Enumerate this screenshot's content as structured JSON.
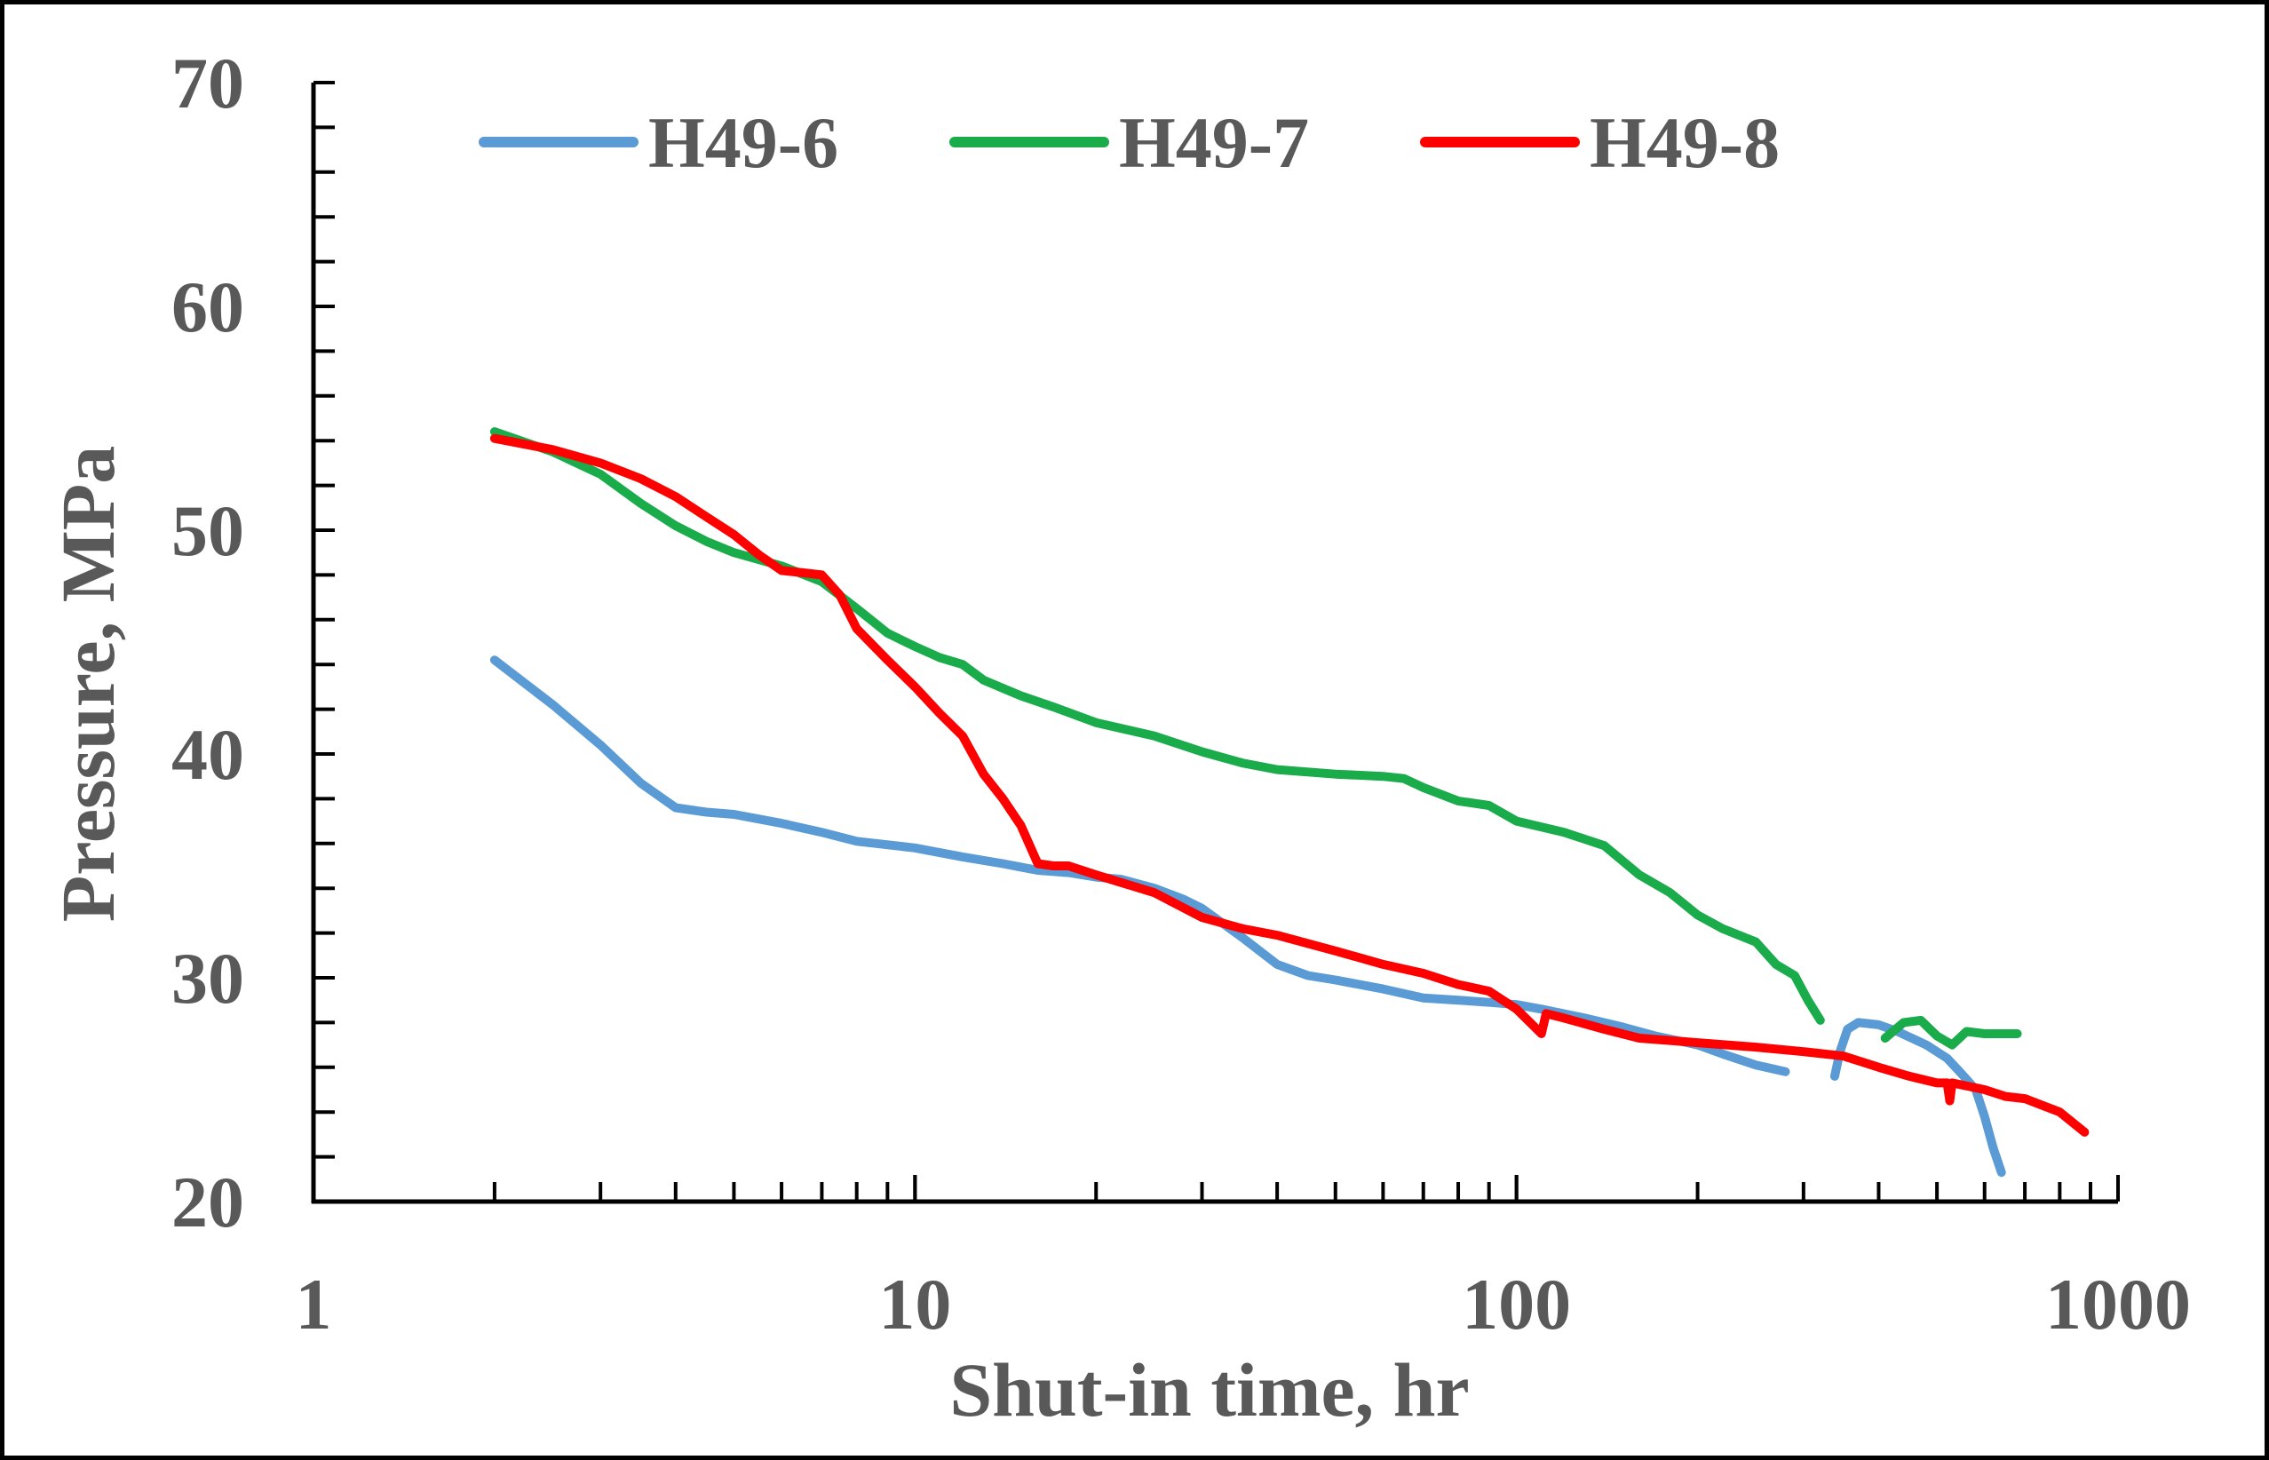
{
  "chart_data": {
    "type": "line",
    "title": "",
    "xlabel": "Shut-in time, hr",
    "ylabel": "Pressure, MPa",
    "xscale": "log",
    "xlim": [
      1,
      1000
    ],
    "ylim": [
      20,
      70
    ],
    "xticks": [
      "1",
      "10",
      "100",
      "1000"
    ],
    "yticks": [
      "20",
      "30",
      "40",
      "50",
      "60",
      "70"
    ],
    "legend_position": "top",
    "series": [
      {
        "name": "H49-6",
        "color": "#5b9bd5",
        "segments": [
          [
            [
              2,
              44.2
            ],
            [
              2.5,
              42.2
            ],
            [
              3,
              40.4
            ],
            [
              3.5,
              38.7
            ],
            [
              4,
              37.6
            ],
            [
              4.5,
              37.4
            ],
            [
              5,
              37.3
            ],
            [
              6,
              36.9
            ],
            [
              7,
              36.5
            ],
            [
              8,
              36.1
            ],
            [
              10,
              35.8
            ],
            [
              12,
              35.4
            ],
            [
              14,
              35.1
            ],
            [
              16,
              34.8
            ],
            [
              18,
              34.7
            ],
            [
              20,
              34.5
            ],
            [
              22,
              34.4
            ],
            [
              25,
              34.0
            ],
            [
              28,
              33.5
            ],
            [
              30,
              33.1
            ],
            [
              35,
              31.8
            ],
            [
              40,
              30.6
            ],
            [
              45,
              30.1
            ],
            [
              50,
              29.9
            ],
            [
              60,
              29.5
            ],
            [
              70,
              29.1
            ],
            [
              80,
              29.0
            ],
            [
              90,
              28.9
            ],
            [
              100,
              28.8
            ],
            [
              110,
              28.6
            ],
            [
              130,
              28.2
            ],
            [
              150,
              27.8
            ],
            [
              170,
              27.4
            ],
            [
              200,
              27.0
            ],
            [
              220,
              26.6
            ],
            [
              250,
              26.1
            ],
            [
              280,
              25.8
            ]
          ],
          [
            [
              338,
              25.6
            ],
            [
              345,
              26.7
            ],
            [
              355,
              27.7
            ],
            [
              370,
              28.0
            ],
            [
              400,
              27.9
            ],
            [
              430,
              27.6
            ],
            [
              480,
              27.0
            ],
            [
              520,
              26.4
            ],
            [
              550,
              25.7
            ],
            [
              580,
              25.0
            ],
            [
              600,
              23.8
            ],
            [
              620,
              22.4
            ],
            [
              640,
              21.3
            ]
          ]
        ]
      },
      {
        "name": "H49-7",
        "color": "#1aab4b",
        "segments": [
          [
            [
              2,
              54.4
            ],
            [
              2.5,
              53.5
            ],
            [
              3,
              52.5
            ],
            [
              3.5,
              51.2
            ],
            [
              4,
              50.2
            ],
            [
              4.5,
              49.5
            ],
            [
              5,
              49.0
            ],
            [
              6,
              48.4
            ],
            [
              7,
              47.7
            ],
            [
              8,
              46.5
            ],
            [
              9,
              45.4
            ],
            [
              10,
              44.8
            ],
            [
              11,
              44.3
            ],
            [
              12,
              44.0
            ],
            [
              13,
              43.3
            ],
            [
              15,
              42.6
            ],
            [
              17,
              42.1
            ],
            [
              20,
              41.4
            ],
            [
              25,
              40.8
            ],
            [
              30,
              40.1
            ],
            [
              35,
              39.6
            ],
            [
              40,
              39.3
            ],
            [
              50,
              39.1
            ],
            [
              60,
              39.0
            ],
            [
              65,
              38.9
            ],
            [
              70,
              38.5
            ],
            [
              80,
              37.9
            ],
            [
              90,
              37.7
            ],
            [
              100,
              37.0
            ],
            [
              120,
              36.5
            ],
            [
              140,
              35.9
            ],
            [
              160,
              34.6
            ],
            [
              180,
              33.8
            ],
            [
              200,
              32.8
            ],
            [
              220,
              32.2
            ],
            [
              250,
              31.6
            ],
            [
              270,
              30.6
            ],
            [
              290,
              30.1
            ],
            [
              305,
              29.0
            ],
            [
              320,
              28.1
            ]
          ],
          [
            [
              410,
              27.3
            ],
            [
              440,
              28.0
            ],
            [
              470,
              28.1
            ],
            [
              500,
              27.4
            ],
            [
              530,
              27.0
            ],
            [
              560,
              27.6
            ],
            [
              600,
              27.5
            ],
            [
              640,
              27.5
            ],
            [
              680,
              27.5
            ]
          ]
        ]
      },
      {
        "name": "H49-8",
        "color": "#ff0000",
        "segments": [
          [
            [
              2,
              54.1
            ],
            [
              2.5,
              53.6
            ],
            [
              3,
              53.0
            ],
            [
              3.5,
              52.3
            ],
            [
              4,
              51.5
            ],
            [
              4.5,
              50.6
            ],
            [
              5,
              49.8
            ],
            [
              5.5,
              48.9
            ],
            [
              6,
              48.2
            ],
            [
              6.5,
              48.1
            ],
            [
              7,
              48.0
            ],
            [
              7.5,
              47.1
            ],
            [
              8,
              45.6
            ],
            [
              9,
              44.2
            ],
            [
              10,
              43.0
            ],
            [
              11,
              41.8
            ],
            [
              12,
              40.8
            ],
            [
              13,
              39.1
            ],
            [
              14,
              38.0
            ],
            [
              15,
              36.8
            ],
            [
              16,
              35.1
            ],
            [
              17,
              35.0
            ],
            [
              18,
              35.0
            ],
            [
              20,
              34.6
            ],
            [
              25,
              33.8
            ],
            [
              30,
              32.7
            ],
            [
              35,
              32.2
            ],
            [
              40,
              31.9
            ],
            [
              50,
              31.2
            ],
            [
              60,
              30.6
            ],
            [
              70,
              30.2
            ],
            [
              80,
              29.7
            ],
            [
              90,
              29.4
            ],
            [
              100,
              28.6
            ],
            [
              110,
              27.5
            ],
            [
              112,
              28.4
            ],
            [
              120,
              28.2
            ],
            [
              140,
              27.7
            ],
            [
              160,
              27.3
            ],
            [
              200,
              27.1
            ],
            [
              250,
              26.9
            ],
            [
              300,
              26.7
            ],
            [
              350,
              26.5
            ],
            [
              400,
              26.0
            ],
            [
              450,
              25.6
            ],
            [
              500,
              25.3
            ],
            [
              520,
              25.3
            ],
            [
              525,
              24.5
            ],
            [
              530,
              25.3
            ],
            [
              600,
              25.0
            ],
            [
              650,
              24.7
            ],
            [
              700,
              24.6
            ],
            [
              800,
              24.0
            ],
            [
              880,
              23.1
            ]
          ]
        ]
      }
    ]
  }
}
